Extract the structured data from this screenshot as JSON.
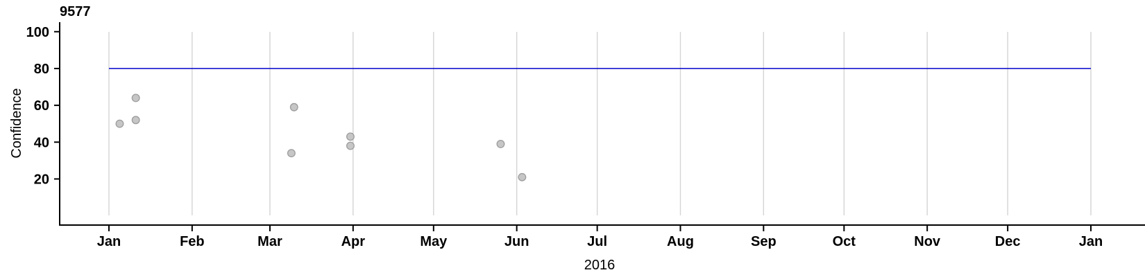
{
  "chart_data": {
    "type": "scatter",
    "title": "9577",
    "xlabel": "2016",
    "ylabel": "Confidence",
    "x_axis": {
      "tick_labels": [
        "Jan",
        "Feb",
        "Mar",
        "Apr",
        "May",
        "Jun",
        "Jul",
        "Aug",
        "Sep",
        "Oct",
        "Nov",
        "Dec",
        "Jan"
      ],
      "tick_days": [
        0,
        31,
        60,
        91,
        121,
        152,
        182,
        213,
        244,
        274,
        305,
        335,
        366
      ],
      "domain_days": [
        0,
        366
      ],
      "grid": "vertical-month-gridlines"
    },
    "y_axis": {
      "ticks": [
        20,
        40,
        60,
        80,
        100
      ],
      "ylim": [
        0,
        105
      ],
      "grid": "off"
    },
    "threshold_line": {
      "value": 80,
      "start_day": 0,
      "end_day": 366,
      "color": "#0000cc"
    },
    "points": [
      {
        "date": "Jan 5",
        "day": 4,
        "value": 50
      },
      {
        "date": "Jan 11",
        "day": 10,
        "value": 64
      },
      {
        "date": "Jan 11",
        "day": 10,
        "value": 52
      },
      {
        "date": "Mar 9",
        "day": 68,
        "value": 34
      },
      {
        "date": "Mar 10",
        "day": 69,
        "value": 59
      },
      {
        "date": "Mar 31",
        "day": 90,
        "value": 43
      },
      {
        "date": "Mar 31",
        "day": 90,
        "value": 38
      },
      {
        "date": "May 26",
        "day": 146,
        "value": 39
      },
      {
        "date": "Jun 3",
        "day": 154,
        "value": 21
      }
    ],
    "colors": {
      "point_fill": "#c6c6c6",
      "point_stroke": "#9c9c9c",
      "gridline": "#d4d4d4",
      "axis": "#000000",
      "threshold": "#0000cc"
    }
  }
}
